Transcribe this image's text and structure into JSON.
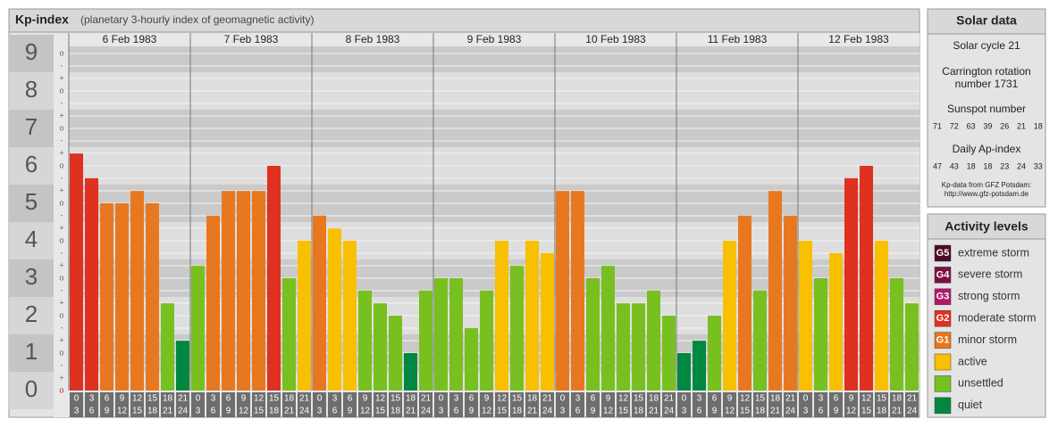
{
  "chart_data": {
    "type": "bar",
    "title": "Kp-index",
    "subtitle": "(planetary 3-hourly index of geomagnetic activity)",
    "ylim": [
      0,
      9.33
    ],
    "yticks": [
      0,
      1,
      2,
      3,
      4,
      5,
      6,
      7,
      8,
      9
    ],
    "minor_labels": {
      "below": "-",
      "at": "o",
      "above": "+"
    },
    "slots": [
      {
        "from": 0,
        "to": 3
      },
      {
        "from": 3,
        "to": 6
      },
      {
        "from": 6,
        "to": 9
      },
      {
        "from": 9,
        "to": 12
      },
      {
        "from": 12,
        "to": 15
      },
      {
        "from": 15,
        "to": 18
      },
      {
        "from": 18,
        "to": 21
      },
      {
        "from": 21,
        "to": 24
      }
    ],
    "days": [
      {
        "date": "6 Feb 1983",
        "values": [
          6.33,
          5.67,
          5,
          5,
          5.33,
          5,
          2.33,
          1.33
        ],
        "colors": [
          "#e03020",
          "#e03020",
          "#e87820",
          "#e87820",
          "#e87820",
          "#e87820",
          "#78c020",
          "#008840"
        ]
      },
      {
        "date": "7 Feb 1983",
        "values": [
          3.33,
          4.67,
          5.33,
          5.33,
          5.33,
          6,
          3,
          4
        ],
        "colors": [
          "#78c020",
          "#e87820",
          "#e87820",
          "#e87820",
          "#e87820",
          "#e03020",
          "#78c020",
          "#f8c000"
        ]
      },
      {
        "date": "8 Feb 1983",
        "values": [
          4.67,
          4.33,
          4,
          2.67,
          2.33,
          2,
          1,
          2.67
        ],
        "colors": [
          "#e87820",
          "#f8c000",
          "#f8c000",
          "#78c020",
          "#78c020",
          "#78c020",
          "#008840",
          "#78c020"
        ]
      },
      {
        "date": "9 Feb 1983",
        "values": [
          3,
          3,
          1.67,
          2.67,
          4,
          3.33,
          4,
          3.67
        ],
        "colors": [
          "#78c020",
          "#78c020",
          "#78c020",
          "#78c020",
          "#f8c000",
          "#78c020",
          "#f8c000",
          "#f8c000"
        ]
      },
      {
        "date": "10 Feb 1983",
        "values": [
          5.33,
          5.33,
          3,
          3.33,
          2.33,
          2.33,
          2.67,
          2
        ],
        "colors": [
          "#e87820",
          "#e87820",
          "#78c020",
          "#78c020",
          "#78c020",
          "#78c020",
          "#78c020",
          "#78c020"
        ]
      },
      {
        "date": "11 Feb 1983",
        "values": [
          1,
          1.33,
          2,
          4,
          4.67,
          2.67,
          5.33,
          4.67
        ],
        "colors": [
          "#008840",
          "#008840",
          "#78c020",
          "#f8c000",
          "#e87820",
          "#78c020",
          "#e87820",
          "#e87820"
        ]
      },
      {
        "date": "12 Feb 1983",
        "values": [
          4,
          3,
          3.67,
          5.67,
          6,
          4,
          3,
          2.33
        ],
        "colors": [
          "#f8c000",
          "#78c020",
          "#f8c000",
          "#e03020",
          "#e03020",
          "#f8c000",
          "#78c020",
          "#78c020"
        ]
      }
    ]
  },
  "solar_data": {
    "title": "Solar data",
    "cycle": "Solar cycle 21",
    "rotation_lines": [
      "Carrington rotation",
      "number 1731"
    ],
    "sunspot_title": "Sunspot number",
    "sunspot": [
      71,
      72,
      63,
      39,
      26,
      21,
      18
    ],
    "ap_title": "Daily Ap-index",
    "ap": [
      47,
      43,
      18,
      18,
      23,
      24,
      33
    ],
    "source": "Kp-data from GFZ Potsdam:",
    "url": "http://www.gfz-potsdam.de"
  },
  "activity_levels": {
    "title": "Activity levels",
    "items": [
      {
        "badge": "G5",
        "label": "extreme storm",
        "color": "#4d0a26"
      },
      {
        "badge": "G4",
        "label": "severe storm",
        "color": "#7a1040"
      },
      {
        "badge": "G3",
        "label": "strong storm",
        "color": "#b0186a"
      },
      {
        "badge": "G2",
        "label": "moderate storm",
        "color": "#e03020"
      },
      {
        "badge": "G1",
        "label": "minor storm",
        "color": "#e87820"
      },
      {
        "label": "active",
        "color": "#f8c000"
      },
      {
        "label": "unsettled",
        "color": "#78c020"
      },
      {
        "label": "quiet",
        "color": "#008840"
      }
    ]
  }
}
